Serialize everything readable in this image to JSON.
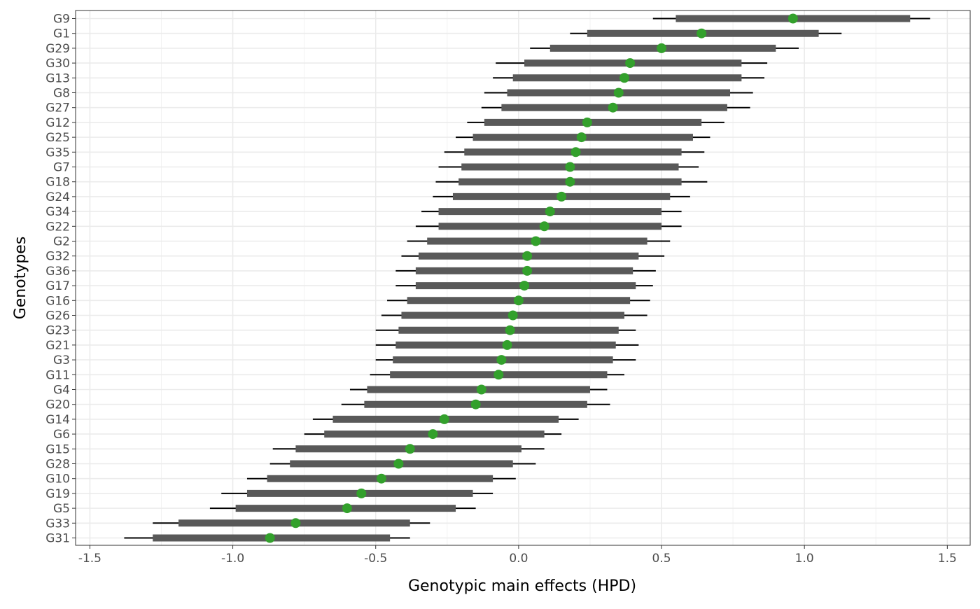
{
  "chart_data": {
    "type": "interval",
    "xlabel": "Genotypic main effects (HPD)",
    "ylabel": "Genotypes",
    "xlim": [
      -1.5,
      1.5
    ],
    "xticks": [
      -1.5,
      -1.0,
      -0.5,
      0.0,
      0.5,
      1.0,
      1.5
    ],
    "xtick_labels": [
      "-1.5",
      "-1.0",
      "-0.5",
      "0.0",
      "0.5",
      "1.0",
      "1.5"
    ],
    "grid": true,
    "point_color": "#33a02c",
    "outer_interval_color": "#000000",
    "inner_interval_color": "#595959",
    "genotypes": [
      "G9",
      "G1",
      "G29",
      "G30",
      "G13",
      "G8",
      "G27",
      "G12",
      "G25",
      "G35",
      "G7",
      "G18",
      "G24",
      "G34",
      "G22",
      "G2",
      "G32",
      "G36",
      "G17",
      "G16",
      "G26",
      "G23",
      "G21",
      "G3",
      "G11",
      "G4",
      "G20",
      "G14",
      "G6",
      "G15",
      "G28",
      "G10",
      "G19",
      "G5",
      "G33",
      "G31"
    ],
    "estimate": [
      0.96,
      0.64,
      0.5,
      0.39,
      0.37,
      0.35,
      0.33,
      0.24,
      0.22,
      0.2,
      0.18,
      0.18,
      0.15,
      0.11,
      0.09,
      0.06,
      0.03,
      0.03,
      0.02,
      0.0,
      -0.02,
      -0.03,
      -0.04,
      -0.06,
      -0.07,
      -0.13,
      -0.15,
      -0.26,
      -0.3,
      -0.38,
      -0.42,
      -0.48,
      -0.55,
      -0.6,
      -0.78,
      -0.87
    ],
    "hpd_outer_low": [
      0.47,
      0.18,
      0.04,
      -0.08,
      -0.09,
      -0.12,
      -0.13,
      -0.18,
      -0.22,
      -0.26,
      -0.28,
      -0.29,
      -0.3,
      -0.34,
      -0.36,
      -0.39,
      -0.41,
      -0.43,
      -0.43,
      -0.46,
      -0.48,
      -0.5,
      -0.5,
      -0.5,
      -0.52,
      -0.59,
      -0.62,
      -0.72,
      -0.75,
      -0.86,
      -0.87,
      -0.95,
      -1.04,
      -1.08,
      -1.28,
      -1.38
    ],
    "hpd_outer_high": [
      1.44,
      1.13,
      0.98,
      0.87,
      0.86,
      0.82,
      0.81,
      0.72,
      0.67,
      0.65,
      0.63,
      0.66,
      0.6,
      0.57,
      0.57,
      0.53,
      0.51,
      0.48,
      0.47,
      0.46,
      0.45,
      0.41,
      0.42,
      0.41,
      0.37,
      0.31,
      0.32,
      0.21,
      0.15,
      0.09,
      0.06,
      -0.01,
      -0.09,
      -0.15,
      -0.31,
      -0.38
    ],
    "hpd_inner_low": [
      0.55,
      0.24,
      0.11,
      0.02,
      -0.02,
      -0.04,
      -0.06,
      -0.12,
      -0.16,
      -0.19,
      -0.2,
      -0.21,
      -0.23,
      -0.28,
      -0.28,
      -0.32,
      -0.35,
      -0.36,
      -0.36,
      -0.39,
      -0.41,
      -0.42,
      -0.43,
      -0.44,
      -0.45,
      -0.53,
      -0.54,
      -0.65,
      -0.68,
      -0.78,
      -0.8,
      -0.88,
      -0.95,
      -0.99,
      -1.19,
      -1.28
    ],
    "hpd_inner_high": [
      1.37,
      1.05,
      0.9,
      0.78,
      0.78,
      0.74,
      0.73,
      0.64,
      0.61,
      0.57,
      0.56,
      0.57,
      0.53,
      0.5,
      0.5,
      0.45,
      0.42,
      0.4,
      0.41,
      0.39,
      0.37,
      0.35,
      0.34,
      0.33,
      0.31,
      0.25,
      0.24,
      0.14,
      0.09,
      0.01,
      -0.02,
      -0.09,
      -0.16,
      -0.22,
      -0.38,
      -0.45
    ]
  }
}
